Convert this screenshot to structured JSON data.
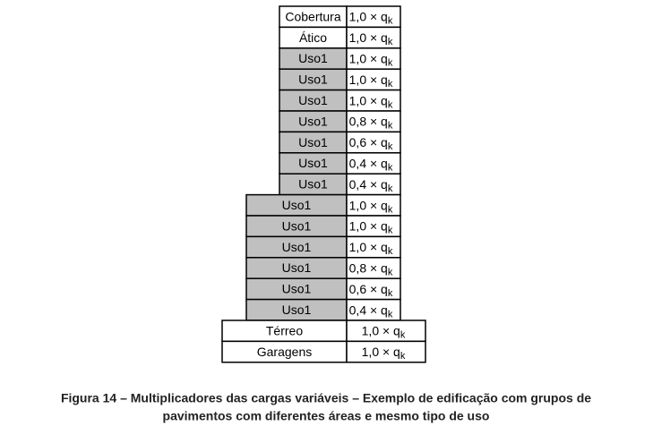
{
  "rows": [
    {
      "label": "Cobertura",
      "factor": "1,0 × q"
    },
    {
      "label": "Ático",
      "factor": "1,0 × q"
    },
    {
      "label": "Uso1",
      "factor": "1,0 × q"
    },
    {
      "label": "Uso1",
      "factor": "1,0 × q"
    },
    {
      "label": "Uso1",
      "factor": "1,0 × q"
    },
    {
      "label": "Uso1",
      "factor": "0,8 × q"
    },
    {
      "label": "Uso1",
      "factor": "0,6 × q"
    },
    {
      "label": "Uso1",
      "factor": "0,4 × q"
    },
    {
      "label": "Uso1",
      "factor": "0,4 × q"
    },
    {
      "label": "Uso1",
      "factor": "1,0 × q"
    },
    {
      "label": "Uso1",
      "factor": "1,0 × q"
    },
    {
      "label": "Uso1",
      "factor": "1,0 × q"
    },
    {
      "label": "Uso1",
      "factor": "0,8 × q"
    },
    {
      "label": "Uso1",
      "factor": "0,6 × q"
    },
    {
      "label": "Uso1",
      "factor": "0,4 × q"
    },
    {
      "label": "Térreo",
      "factor": "1,0 × q"
    },
    {
      "label": "Garagens",
      "factor": "1,0 × q"
    }
  ],
  "subscript": "k",
  "caption": [
    "Figura 14 – Multiplicadores das cargas variáveis – Exemplo de edificação com grupos de",
    "pavimentos com diferentes áreas e mesmo tipo de uso"
  ]
}
